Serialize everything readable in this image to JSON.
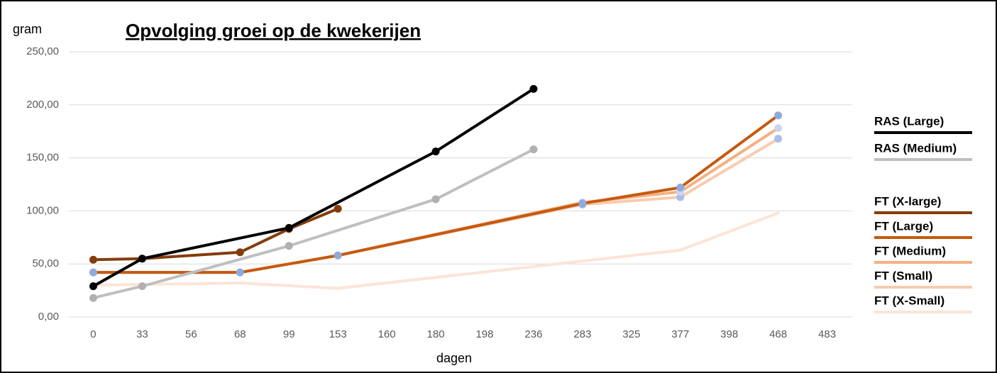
{
  "chart_data": {
    "type": "line",
    "title": "Opvolging groei op de kwekerijen",
    "y_label": "gram",
    "x_label": "dagen",
    "categories": [
      "0",
      "33",
      "56",
      "68",
      "99",
      "153",
      "160",
      "180",
      "198",
      "236",
      "283",
      "325",
      "377",
      "398",
      "468",
      "483"
    ],
    "ylim": [
      0,
      250
    ],
    "yticks": [
      {
        "value": 0,
        "label": "0,00"
      },
      {
        "value": 50,
        "label": "50,00"
      },
      {
        "value": 100,
        "label": "100,00"
      },
      {
        "value": 150,
        "label": "150,00"
      },
      {
        "value": 200,
        "label": "200,00"
      },
      {
        "value": 250,
        "label": "250,00"
      }
    ],
    "grid": true,
    "connect_gaps": true,
    "legend": "right",
    "series": [
      {
        "name": "RAS (Large)",
        "color": "#000000",
        "marker_color": "#000000",
        "values": [
          29,
          55,
          null,
          null,
          84,
          null,
          null,
          156,
          null,
          215,
          null,
          null,
          null,
          null,
          null,
          null
        ]
      },
      {
        "name": "RAS (Medium)",
        "color": "#bfbfbf",
        "marker_color": "#b0b0b0",
        "values": [
          18,
          29,
          null,
          null,
          67,
          null,
          null,
          111,
          null,
          158,
          null,
          null,
          null,
          null,
          null,
          null
        ]
      },
      {
        "name": "FT (X-large)",
        "color": "#843c0c",
        "marker_color": "#843c0c",
        "values": [
          54,
          55,
          null,
          61,
          83,
          102,
          null,
          null,
          null,
          null,
          null,
          null,
          null,
          null,
          null,
          null
        ]
      },
      {
        "name": "FT (Large)",
        "color": "#c55a11",
        "marker_color": "#8faadc",
        "values": [
          42,
          null,
          null,
          42,
          null,
          58,
          null,
          null,
          null,
          null,
          107,
          null,
          122,
          null,
          190,
          null
        ]
      },
      {
        "name": "FT (Medium)",
        "color": "#f4b183",
        "marker_color": "#c9d6ee",
        "values": [
          42,
          null,
          null,
          42,
          null,
          58,
          null,
          null,
          null,
          null,
          108,
          null,
          118,
          null,
          178,
          null
        ]
      },
      {
        "name": "FT (Small)",
        "color": "#f8cbad",
        "marker_color": "#a9bde6",
        "values": [
          42,
          null,
          null,
          42,
          null,
          58,
          null,
          null,
          null,
          null,
          106,
          null,
          113,
          null,
          168,
          null
        ]
      },
      {
        "name": "FT (X-Small)",
        "color": "#fbe5d6",
        "values": [
          30,
          null,
          null,
          32,
          null,
          27,
          null,
          null,
          null,
          null,
          null,
          null,
          63,
          null,
          98,
          null
        ]
      }
    ]
  }
}
